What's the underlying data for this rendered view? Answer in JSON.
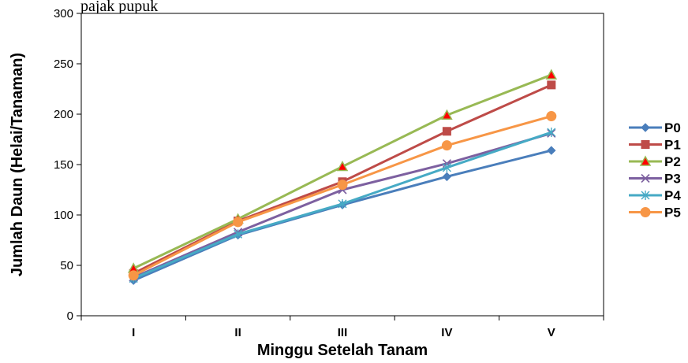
{
  "top_text": "pajak pupuk",
  "chart_data": {
    "type": "line",
    "categories": [
      "I",
      "II",
      "III",
      "IV",
      "V"
    ],
    "xlabel": "Minggu Setelah Tanam",
    "ylabel": "Jumlah Daun (Helai/Tanaman)",
    "ylim": [
      0,
      300
    ],
    "yticks": [
      0,
      50,
      100,
      150,
      200,
      250,
      300
    ],
    "grid": false,
    "legend": "right",
    "series": [
      {
        "name": "P0",
        "values": [
          35,
          80,
          110,
          138,
          164
        ],
        "color": "#4a7ebb",
        "marker": "diamond"
      },
      {
        "name": "P1",
        "values": [
          42,
          94,
          133,
          183,
          229
        ],
        "color": "#be4b48",
        "marker": "square"
      },
      {
        "name": "P2",
        "values": [
          47,
          96,
          148,
          199,
          239
        ],
        "color": "#98b954",
        "marker": "triangle"
      },
      {
        "name": "P3",
        "values": [
          38,
          83,
          125,
          151,
          181
        ],
        "color": "#7d60a0",
        "marker": "x"
      },
      {
        "name": "P4",
        "values": [
          37,
          81,
          111,
          147,
          182
        ],
        "color": "#46aac5",
        "marker": "star"
      },
      {
        "name": "P5",
        "values": [
          40,
          93,
          130,
          169,
          198
        ],
        "color": "#f79646",
        "marker": "circle"
      }
    ]
  }
}
